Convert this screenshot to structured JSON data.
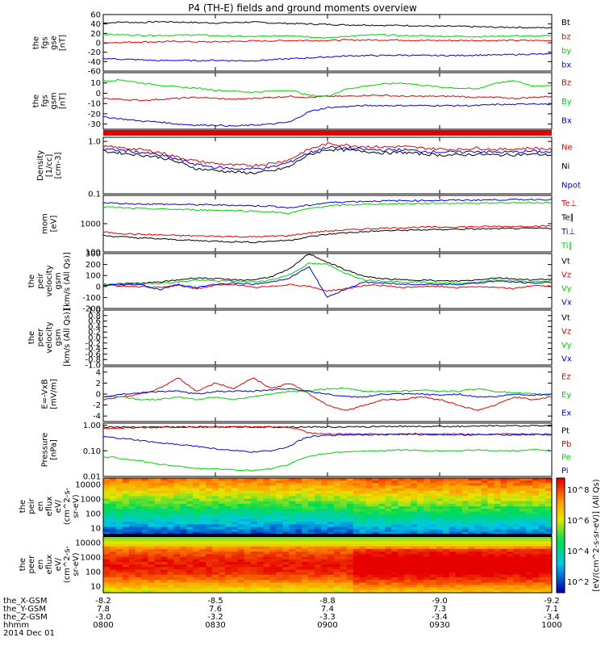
{
  "title": "P4 (TH-E) fields and ground moments overview",
  "colors": {
    "black": "#000000",
    "red": "#e00000",
    "green": "#00d000",
    "blue": "#0000e0"
  },
  "chart_data": [
    {
      "type": "line",
      "ylabel": [
        "the",
        "fgs",
        "gse",
        "[nT]"
      ],
      "ylim": [
        -60,
        60
      ],
      "yticks": [
        "60",
        "40",
        "20",
        "0",
        "-20",
        "-40",
        "-60"
      ],
      "series": [
        {
          "name": "Bt",
          "color": "#000000",
          "values": [
            42,
            44,
            43,
            45,
            44,
            43,
            42,
            43,
            44,
            42,
            41,
            40,
            39,
            38,
            38,
            37,
            37,
            36,
            35,
            35,
            34,
            33,
            33,
            32,
            32
          ]
        },
        {
          "name": "bz",
          "color": "#e00000",
          "values": [
            0,
            1,
            2,
            2,
            3,
            2,
            2,
            3,
            4,
            4,
            5,
            5,
            5,
            6,
            6,
            6,
            6,
            5,
            5,
            5,
            5,
            5,
            5,
            5,
            5
          ]
        },
        {
          "name": "by",
          "color": "#00d000",
          "values": [
            18,
            17,
            16,
            16,
            16,
            17,
            15,
            14,
            13,
            14,
            16,
            13,
            10,
            14,
            16,
            17,
            15,
            15,
            14,
            14,
            13,
            14,
            15,
            14,
            15
          ]
        },
        {
          "name": "bx",
          "color": "#0000e0",
          "values": [
            -33,
            -35,
            -36,
            -38,
            -37,
            -38,
            -37,
            -38,
            -38,
            -36,
            -34,
            -32,
            -30,
            -28,
            -27,
            -27,
            -26,
            -27,
            -27,
            -27,
            -26,
            -26,
            -25,
            -24,
            -24
          ]
        }
      ],
      "legend": [
        "Bt",
        "bz",
        "by",
        "bx"
      ]
    },
    {
      "type": "line",
      "ylabel": [
        "the",
        "fgs",
        "gsm",
        "[nT]"
      ],
      "ylim": [
        -35,
        20
      ],
      "yticks": [
        "10",
        "0",
        "-10",
        "-20",
        "-30"
      ],
      "series": [
        {
          "name": "Bz",
          "color": "#e00000",
          "values": [
            -5,
            -6,
            -7,
            -6,
            -5,
            -4,
            -5,
            -6,
            -5,
            -4,
            -3,
            -4,
            -3,
            -3,
            -2,
            -2,
            -3,
            -3,
            -3,
            -3,
            -4,
            -4,
            -5,
            -4,
            -3
          ]
        },
        {
          "name": "By",
          "color": "#00d000",
          "values": [
            12,
            13,
            10,
            8,
            6,
            5,
            3,
            2,
            1,
            2,
            3,
            -2,
            -3,
            4,
            7,
            9,
            10,
            8,
            6,
            5,
            4,
            10,
            12,
            7,
            8
          ]
        },
        {
          "name": "Bx",
          "color": "#0000e0",
          "values": [
            -23,
            -25,
            -27,
            -28,
            -30,
            -31,
            -31,
            -32,
            -31,
            -30,
            -28,
            -18,
            -14,
            -13,
            -12,
            -12,
            -12,
            -12,
            -12,
            -12,
            -12,
            -11,
            -11,
            -10,
            -11
          ]
        }
      ],
      "legend": [
        "Bz",
        "By",
        "Bx"
      ]
    },
    {
      "type": "line",
      "scale": "log",
      "ylabel": [
        "Density",
        "[1/cc]",
        "[cm-3]"
      ],
      "ylim": [
        0.1,
        1.2
      ],
      "yticks": [
        "1.0",
        "0.1"
      ],
      "series": [
        {
          "name": "Ne",
          "color": "#e00000",
          "values": [
            0.8,
            0.75,
            0.7,
            0.62,
            0.5,
            0.42,
            0.38,
            0.35,
            0.35,
            0.38,
            0.45,
            0.7,
            0.9,
            0.85,
            0.8,
            0.78,
            0.8,
            0.75,
            0.72,
            0.7,
            0.75,
            0.7,
            0.72,
            0.75,
            0.7
          ]
        },
        {
          "name": "Ni",
          "color": "#000000",
          "values": [
            0.65,
            0.6,
            0.55,
            0.5,
            0.4,
            0.3,
            0.28,
            0.26,
            0.25,
            0.27,
            0.33,
            0.55,
            0.7,
            0.68,
            0.65,
            0.6,
            0.62,
            0.58,
            0.55,
            0.55,
            0.57,
            0.55,
            0.56,
            0.57,
            0.55
          ]
        },
        {
          "name": "Npot",
          "color": "#0000e0",
          "values": [
            0.7,
            0.68,
            0.62,
            0.55,
            0.45,
            0.36,
            0.32,
            0.3,
            0.3,
            0.32,
            0.4,
            0.6,
            0.78,
            0.75,
            0.7,
            0.68,
            0.7,
            0.65,
            0.63,
            0.62,
            0.65,
            0.62,
            0.63,
            0.65,
            0.62
          ]
        }
      ],
      "legend": [
        "Ne",
        "Ni",
        "Npot"
      ]
    },
    {
      "type": "line",
      "scale": "log",
      "ylabel": [
        "mom",
        "[eV]"
      ],
      "ylim": [
        100,
        10000
      ],
      "yticks": [
        "1000",
        "100"
      ],
      "series": [
        {
          "name": "Te⊥",
          "color": "#e00000",
          "values": [
            500,
            450,
            420,
            400,
            380,
            370,
            360,
            350,
            340,
            360,
            380,
            470,
            550,
            600,
            650,
            700,
            720,
            750,
            760,
            770,
            780,
            800,
            800,
            820,
            830
          ]
        },
        {
          "name": "Te∥",
          "color": "#000000",
          "values": [
            380,
            340,
            310,
            290,
            270,
            250,
            240,
            230,
            220,
            240,
            260,
            340,
            420,
            480,
            520,
            560,
            580,
            600,
            620,
            640,
            650,
            660,
            670,
            680,
            690
          ]
        },
        {
          "name": "Ti⊥",
          "color": "#0000e0",
          "values": [
            5500,
            5200,
            5000,
            4900,
            4800,
            4700,
            4600,
            4500,
            4300,
            4200,
            3600,
            4500,
            5500,
            6000,
            6200,
            6400,
            6500,
            6600,
            6700,
            6800,
            6900,
            7000,
            7100,
            7200,
            7200
          ]
        },
        {
          "name": "Ti∥",
          "color": "#00d000",
          "values": [
            4000,
            3600,
            3400,
            3300,
            3200,
            3100,
            3000,
            2900,
            2800,
            2600,
            2300,
            3400,
            4200,
            4600,
            4800,
            5000,
            5100,
            5200,
            5300,
            5300,
            5400,
            5400,
            5500,
            5500,
            5600
          ]
        }
      ],
      "legend": [
        "Te⊥",
        "Te∥",
        "Ti⊥",
        "Ti∥"
      ]
    },
    {
      "type": "line",
      "ylabel": [
        "the",
        "peir",
        "velocity",
        "gsm",
        "[km/s (All Qs)]"
      ],
      "ylim": [
        -200,
        300
      ],
      "yticks": [
        "300",
        "200",
        "100",
        "0",
        "-100",
        "-200"
      ],
      "series": [
        {
          "name": "Vt",
          "color": "#000000",
          "values": [
            20,
            25,
            30,
            40,
            60,
            80,
            70,
            60,
            60,
            90,
            160,
            300,
            220,
            150,
            90,
            70,
            60,
            60,
            50,
            50,
            60,
            80,
            70,
            60,
            70
          ]
        },
        {
          "name": "Vz",
          "color": "#e00000",
          "values": [
            10,
            5,
            0,
            -10,
            10,
            -20,
            10,
            20,
            -10,
            0,
            20,
            0,
            -40,
            -20,
            10,
            10,
            -10,
            0,
            0,
            -10,
            0,
            -10,
            -20,
            10,
            0
          ]
        },
        {
          "name": "Vy",
          "color": "#00d000",
          "values": [
            20,
            20,
            25,
            30,
            40,
            60,
            50,
            50,
            40,
            60,
            110,
            210,
            200,
            120,
            60,
            50,
            40,
            40,
            30,
            30,
            40,
            60,
            50,
            40,
            50
          ]
        },
        {
          "name": "Vx",
          "color": "#0000e0",
          "values": [
            10,
            15,
            20,
            -30,
            20,
            -10,
            20,
            30,
            20,
            40,
            80,
            180,
            -100,
            -20,
            40,
            30,
            20,
            20,
            20,
            20,
            30,
            50,
            40,
            30,
            40
          ]
        }
      ],
      "legend": [
        "Vt",
        "Vz",
        "Vy",
        "Vx"
      ]
    },
    {
      "type": "line",
      "ylabel": [
        "the",
        "peer",
        "velocity",
        "gsm",
        "[km/s (All Qs)]"
      ],
      "ylim": [
        -1.0,
        1.0
      ],
      "yticks": [
        "1.0",
        "0.8",
        "0.6",
        "0.4",
        "0.2",
        "0.0",
        "-0.2",
        "-0.4",
        "-0.6",
        "-0.8",
        "-1.0"
      ],
      "series": [],
      "legend": [
        "Vt",
        "Vz",
        "Vy",
        "Vx"
      ]
    },
    {
      "type": "line",
      "ylabel": [
        "E=-VxB",
        "[mV/m]"
      ],
      "ylim": [
        -5,
        5
      ],
      "yticks": [
        "4",
        "2",
        "0",
        "-2",
        "-4"
      ],
      "series": [
        {
          "name": "Ez",
          "color": "#e00000",
          "values": [
            -1,
            -0.5,
            0,
            1,
            3,
            0.5,
            2,
            1,
            3,
            1,
            2,
            0,
            -2,
            -3,
            -2,
            -1,
            -1,
            -0.5,
            -1,
            -2,
            -3,
            -2,
            -0.5,
            -1,
            -0.5
          ]
        },
        {
          "name": "Ey",
          "color": "#00d000",
          "values": [
            -0.5,
            -0.5,
            -1,
            -1,
            -0.5,
            -1,
            -0.5,
            -1,
            -0.5,
            0,
            0.5,
            0.5,
            1,
            1,
            0.5,
            0.5,
            0.5,
            0.8,
            0.5,
            0.5,
            1,
            0.5,
            0.2,
            0,
            0
          ]
        },
        {
          "name": "Ex",
          "color": "#0000e0",
          "values": [
            -0.5,
            0,
            0.2,
            0.5,
            0.5,
            0,
            0.5,
            0.5,
            0.5,
            0.8,
            1,
            0.5,
            0,
            -0.5,
            -0.5,
            0,
            0,
            0,
            -0.2,
            0,
            -0.5,
            -0.5,
            0,
            -0.2,
            0
          ]
        }
      ],
      "legend": [
        "Ez",
        "Ey",
        "Ex"
      ]
    },
    {
      "type": "line",
      "scale": "log",
      "ylabel": [
        "Pressure",
        "[nPa]"
      ],
      "ylim": [
        0.01,
        1.2
      ],
      "yticks": [
        "1.00",
        "0.10",
        "0.01"
      ],
      "series": [
        {
          "name": "Pt",
          "color": "#000000",
          "values": [
            0.85,
            0.85,
            0.85,
            0.85,
            0.85,
            0.85,
            0.85,
            0.85,
            0.85,
            0.85,
            0.85,
            0.85,
            0.85,
            0.85,
            0.85,
            0.9,
            0.9,
            0.9,
            0.9,
            0.9,
            0.9,
            0.95,
            0.95,
            0.95,
            0.95
          ]
        },
        {
          "name": "Pb",
          "color": "#e00000",
          "values": [
            0.75,
            0.78,
            0.8,
            0.82,
            0.83,
            0.84,
            0.84,
            0.85,
            0.85,
            0.84,
            0.82,
            0.5,
            0.45,
            0.45,
            0.46,
            0.45,
            0.45,
            0.47,
            0.46,
            0.45,
            0.44,
            0.45,
            0.46,
            0.44,
            0.45
          ]
        },
        {
          "name": "Pe",
          "color": "#00d000",
          "values": [
            0.06,
            0.05,
            0.04,
            0.03,
            0.025,
            0.02,
            0.02,
            0.018,
            0.017,
            0.02,
            0.03,
            0.06,
            0.08,
            0.09,
            0.1,
            0.1,
            0.11,
            0.1,
            0.1,
            0.1,
            0.11,
            0.1,
            0.1,
            0.11,
            0.1
          ]
        },
        {
          "name": "Pi",
          "color": "#0000e0",
          "values": [
            0.35,
            0.3,
            0.25,
            0.2,
            0.18,
            0.15,
            0.12,
            0.1,
            0.09,
            0.1,
            0.15,
            0.35,
            0.4,
            0.42,
            0.43,
            0.43,
            0.44,
            0.43,
            0.43,
            0.42,
            0.42,
            0.43,
            0.42,
            0.43,
            0.42
          ]
        }
      ],
      "legend": [
        "Pt",
        "Pb",
        "Pe",
        "Pi"
      ]
    },
    {
      "type": "heatmap",
      "ylabel": [
        "the",
        "peir",
        "en",
        "eflux",
        "eV/",
        "(cm^2-s-",
        "sr-eV)"
      ],
      "yticks": [
        "10000",
        "1000",
        "100",
        "10"
      ]
    },
    {
      "type": "heatmap",
      "ylabel": [
        "the",
        "peer",
        "en",
        "eflux",
        "eV/",
        "(cm^2-s-",
        "sr-eV)"
      ],
      "yticks": [
        "10000",
        "1000",
        "100",
        "10"
      ]
    }
  ],
  "xaxis": {
    "rows": [
      {
        "label": "the_X-GSM",
        "values": [
          "-8.2",
          "-8.5",
          "-8.8",
          "-9.0",
          "-9.2"
        ]
      },
      {
        "label": "the_Y-GSM",
        "values": [
          "7.8",
          "7.6",
          "7.4",
          "7.3",
          "7.1"
        ]
      },
      {
        "label": "the_Z-GSM",
        "values": [
          "-3.0",
          "-3.2",
          "-3.3",
          "-3.4",
          "-3.4"
        ]
      },
      {
        "label": "hhmm",
        "values": [
          "0800",
          "0830",
          "0900",
          "0930",
          "1000"
        ]
      }
    ],
    "date": "2014 Dec 01"
  },
  "colorbar": {
    "ticks": [
      "10^8",
      "10^6",
      "10^4",
      "10^2"
    ],
    "label": "[eV/(cm^2-s-sr-eV)] (All Qs)"
  }
}
